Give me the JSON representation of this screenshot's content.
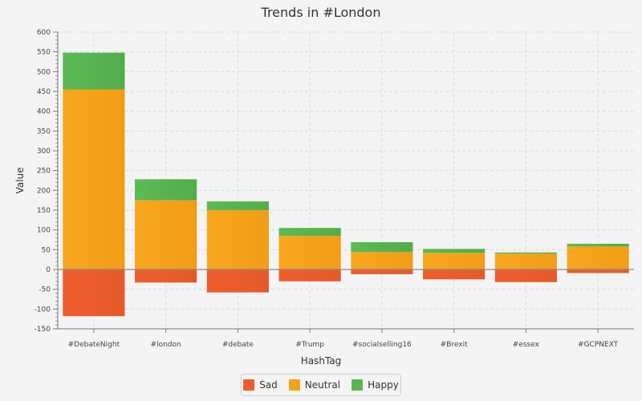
{
  "chart_data": {
    "type": "bar",
    "stacked": true,
    "title": "Trends in #London",
    "xlabel": "HashTag",
    "ylabel": "Value",
    "ylim": [
      -150,
      600
    ],
    "yticks_major": [
      -150,
      -100,
      -50,
      0,
      50,
      100,
      150,
      200,
      250,
      300,
      350,
      400,
      450,
      500,
      550,
      600
    ],
    "grid": true,
    "legend_position": "bottom-center",
    "categories": [
      "#DebateNight",
      "#london",
      "#debate",
      "#Trump",
      "#socialselling16",
      "#Brexit",
      "#essex",
      "#GCPNEXT"
    ],
    "series": [
      {
        "name": "Sad",
        "color": "#ee5d2e",
        "values": [
          -118,
          -33,
          -58,
          -30,
          -12,
          -25,
          -32,
          -9
        ]
      },
      {
        "name": "Neutral",
        "color": "#f5a21b",
        "values": [
          455,
          175,
          150,
          85,
          44,
          42,
          40,
          58
        ]
      },
      {
        "name": "Happy",
        "color": "#5ab553",
        "values": [
          93,
          53,
          22,
          20,
          25,
          10,
          3,
          7
        ]
      }
    ]
  }
}
